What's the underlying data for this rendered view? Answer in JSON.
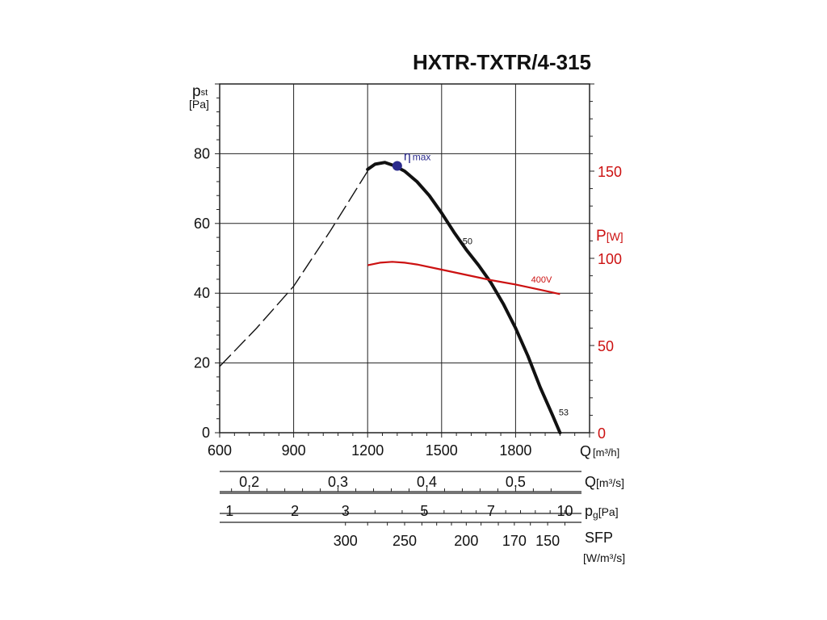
{
  "title": "HXTR-TXTR/4-315",
  "colors": {
    "curve": "#111111",
    "power": "#cc1111",
    "eta_marker": "#2a2a8c",
    "grid": "#222222"
  },
  "chart_data": {
    "type": "line",
    "title": "HXTR-TXTR/4-315",
    "x_axis": {
      "label_main": "Q",
      "label_unit": "[m³/h]",
      "range": [
        600,
        2100
      ],
      "ticks": [
        600,
        900,
        1200,
        1500,
        1800
      ],
      "tick_labels": [
        "600",
        "900",
        "1200",
        "1500",
        "1800"
      ]
    },
    "y_axis_left": {
      "label_main": "p",
      "label_sub": "st",
      "label_unit": "[Pa]",
      "range": [
        0,
        100
      ],
      "ticks": [
        0,
        20,
        40,
        60,
        80
      ],
      "tick_labels": [
        "0",
        "20",
        "40",
        "60",
        "80"
      ]
    },
    "y_axis_right": {
      "label_main": "P",
      "label_unit": "[W]",
      "range": [
        0,
        200
      ],
      "ticks": [
        0,
        50,
        100,
        150
      ],
      "tick_labels": [
        "0",
        "50",
        "100",
        "150"
      ],
      "color": "#cc1111"
    },
    "grid": true,
    "series": [
      {
        "kind": "pressure-dashed",
        "axis": "left",
        "x": [
          600,
          750,
          900,
          1050,
          1200
        ],
        "y": [
          19,
          30,
          42,
          58,
          75
        ]
      },
      {
        "kind": "pressure-solid",
        "axis": "left",
        "x": [
          1200,
          1230,
          1270,
          1310,
          1350,
          1400,
          1450,
          1500,
          1550,
          1600,
          1650,
          1700,
          1750,
          1800,
          1850,
          1900,
          1950,
          1980
        ],
        "y": [
          75.5,
          77,
          77.5,
          76.5,
          75,
          72,
          68,
          63,
          57.5,
          52.5,
          48,
          43,
          37,
          30,
          22,
          13,
          5,
          0
        ]
      },
      {
        "kind": "power",
        "name": "400V",
        "axis": "right",
        "x": [
          1200,
          1250,
          1300,
          1350,
          1400,
          1500,
          1600,
          1700,
          1800,
          1900,
          1980
        ],
        "y": [
          96,
          97.5,
          98,
          97.5,
          96.5,
          93.5,
          90.5,
          87.5,
          85,
          82,
          79.5
        ]
      }
    ],
    "annotations": [
      {
        "label_main": "η",
        "label_sub": "max",
        "x": 1320,
        "y": 76.5
      },
      {
        "label": "50",
        "x": 1605,
        "y": 54
      },
      {
        "label": "53",
        "x": 1995,
        "y": 5
      },
      {
        "label": "400V",
        "x": 1905,
        "y": 86
      }
    ],
    "secondary_scales": [
      {
        "label_main": "Q",
        "label_unit": "[m³/s]",
        "ticks": [
          {
            "value": "0,2",
            "q_m3h": 720
          },
          {
            "value": "0,3",
            "q_m3h": 1080
          },
          {
            "value": "0,4",
            "q_m3h": 1440
          },
          {
            "value": "0,5",
            "q_m3h": 1800
          }
        ]
      },
      {
        "label_main": "p",
        "label_sub": "g",
        "label_unit": "[Pa]",
        "ticks": [
          {
            "value": "1",
            "q_m3h": 640
          },
          {
            "value": "2",
            "q_m3h": 905
          },
          {
            "value": "3",
            "q_m3h": 1110
          },
          {
            "value": "5",
            "q_m3h": 1430
          },
          {
            "value": "7",
            "q_m3h": 1700
          },
          {
            "value": "10",
            "q_m3h": 2000
          }
        ]
      },
      {
        "label_main": "SFP",
        "label_unit": "[W/m³/s]",
        "ticks": [
          {
            "value": "300",
            "q_m3h": 1110
          },
          {
            "value": "250",
            "q_m3h": 1350
          },
          {
            "value": "200",
            "q_m3h": 1600
          },
          {
            "value": "170",
            "q_m3h": 1795
          },
          {
            "value": "150",
            "q_m3h": 1930
          }
        ]
      }
    ]
  }
}
